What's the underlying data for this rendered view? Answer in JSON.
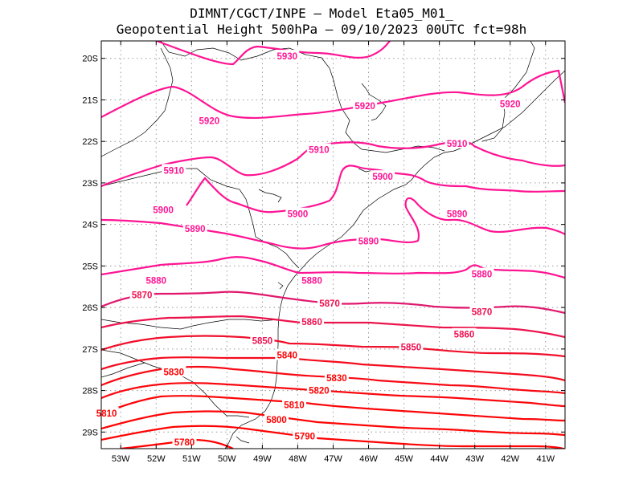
{
  "title": {
    "line1": "DIMNT/CGCT/INPE –  Model Eta05_M01_",
    "line2": "Geopotential Height 500hPa –  09/10/2023 00UTC fct=98h"
  },
  "axes": {
    "lat_ticks": [
      "20S",
      "21S",
      "22S",
      "23S",
      "24S",
      "25S",
      "26S",
      "27S",
      "28S",
      "29S"
    ],
    "lon_ticks": [
      "53W",
      "52W",
      "51W",
      "50W",
      "49W",
      "48W",
      "47W",
      "46W",
      "45W",
      "44W",
      "43W",
      "42W",
      "41W"
    ]
  },
  "colors": {
    "high": "#ff1493",
    "low": "#ff0000",
    "grid": "#999999",
    "coast": "#000000"
  },
  "contour_labels": [
    {
      "value": "5930",
      "lon": -48.3,
      "lat": -19.95
    },
    {
      "value": "5920",
      "lon": -50.5,
      "lat": -21.5
    },
    {
      "value": "5920",
      "lon": -46.1,
      "lat": -21.15
    },
    {
      "value": "5920",
      "lon": -42.0,
      "lat": -21.1
    },
    {
      "value": "5910",
      "lon": -47.4,
      "lat": -22.2
    },
    {
      "value": "5910",
      "lon": -43.5,
      "lat": -22.05
    },
    {
      "value": "5910",
      "lon": -51.5,
      "lat": -22.7
    },
    {
      "value": "5900",
      "lon": -51.8,
      "lat": -23.65
    },
    {
      "value": "5900",
      "lon": -48.0,
      "lat": -23.75
    },
    {
      "value": "5900",
      "lon": -45.6,
      "lat": -22.85
    },
    {
      "value": "5890",
      "lon": -50.9,
      "lat": -24.1
    },
    {
      "value": "5890",
      "lon": -46.0,
      "lat": -24.4
    },
    {
      "value": "5890",
      "lon": -43.5,
      "lat": -23.75
    },
    {
      "value": "5880",
      "lon": -52.0,
      "lat": -25.35
    },
    {
      "value": "5880",
      "lon": -47.6,
      "lat": -25.35
    },
    {
      "value": "5880",
      "lon": -42.8,
      "lat": -25.2
    },
    {
      "value": "5870",
      "lon": -52.4,
      "lat": -25.7
    },
    {
      "value": "5870",
      "lon": -47.1,
      "lat": -25.9
    },
    {
      "value": "5870",
      "lon": -42.8,
      "lat": -26.1
    },
    {
      "value": "5860",
      "lon": -47.6,
      "lat": -26.35
    },
    {
      "value": "5860",
      "lon": -43.3,
      "lat": -26.65
    },
    {
      "value": "5850",
      "lon": -49.0,
      "lat": -26.8
    },
    {
      "value": "5850",
      "lon": -44.8,
      "lat": -26.95
    },
    {
      "value": "5840",
      "lon": -48.3,
      "lat": -27.15
    },
    {
      "value": "5830",
      "lon": -51.5,
      "lat": -27.55
    },
    {
      "value": "5830",
      "lon": -46.9,
      "lat": -27.7
    },
    {
      "value": "5820",
      "lon": -47.4,
      "lat": -28.0
    },
    {
      "value": "5810",
      "lon": -53.4,
      "lat": -28.55
    },
    {
      "value": "5810",
      "lon": -48.1,
      "lat": -28.35
    },
    {
      "value": "5800",
      "lon": -48.6,
      "lat": -28.7
    },
    {
      "value": "5790",
      "lon": -47.8,
      "lat": -29.1
    },
    {
      "value": "5780",
      "lon": -51.2,
      "lat": -29.25
    }
  ]
}
